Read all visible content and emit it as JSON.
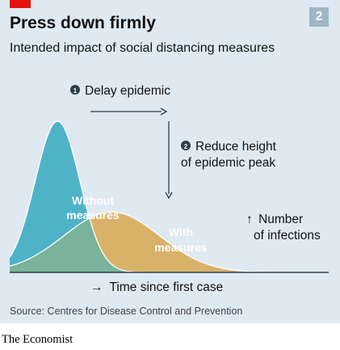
{
  "header": {
    "title": "Press down firmly",
    "subtitle": "Intended impact of social distancing measures",
    "badge": "2"
  },
  "chart_data": {
    "type": "area",
    "title": "Press down firmly",
    "subtitle": "Intended impact of social distancing measures",
    "xlabel": "Time since first case",
    "ylabel": "Number of infections",
    "grid": false,
    "series": [
      {
        "name": "Without measures",
        "color": "#4fb3c8",
        "peak_time": 0.15,
        "peak_value": 1.0,
        "spread": 0.07
      },
      {
        "name": "With measures",
        "color": "#d9b26a",
        "peak_time": 0.32,
        "peak_value": 0.4,
        "spread": 0.15
      }
    ],
    "annotations": [
      {
        "number": "1",
        "text": "Delay epidemic",
        "arrow": "right"
      },
      {
        "number": "2",
        "text": "Reduce height of epidemic peak",
        "arrow": "down"
      }
    ],
    "series_labels": [
      "Without measures",
      "With measures"
    ],
    "axis_labels": {
      "x": "Time since first case",
      "y": "Number of infections"
    },
    "colors": {
      "without": "#4fb3c8",
      "with": "#d9b26a",
      "overlap": "#79b39a",
      "annotation": "#2b3e4b"
    }
  },
  "labels": {
    "annotation1_number": "1",
    "annotation1_text": "Delay epidemic",
    "annotation2_number": "2",
    "annotation2_line1": "Reduce height",
    "annotation2_line2": "of epidemic peak",
    "without_line1": "Without",
    "without_line2": "measures",
    "with_line1": "With",
    "with_line2": "measures",
    "yaxis_line1": "Number",
    "yaxis_line2": "of infections",
    "xaxis": "Time since first case",
    "arrow_up": "↑",
    "arrow_right": "→"
  },
  "footer": {
    "source": "Source: Centres for Disease Control and Prevention",
    "logo": "The Economist"
  }
}
